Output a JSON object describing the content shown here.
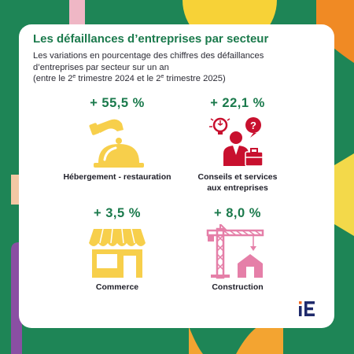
{
  "header": {
    "title": "Les défaillances d’entreprises par secteur",
    "subtitle_lines": [
      "Les variations en pourcentage des chiffres des défaillances",
      "d’entreprises par secteur sur un an"
    ],
    "period_parts": [
      "(entre le 2",
      "e",
      " trimestre 2024 et le 2",
      "e",
      " trimestre 2025)"
    ]
  },
  "sectors": [
    {
      "value": "+ 55,5 %",
      "label_lines": [
        "Hébergement - restauration"
      ],
      "icon": "cloche-serving-icon"
    },
    {
      "value": "+ 22,1 %",
      "label_lines": [
        "Conseils et services",
        "aux entreprises"
      ],
      "icon": "consultant-icon"
    },
    {
      "value": "+ 3,5 %",
      "label_lines": [
        "Commerce"
      ],
      "icon": "shop-icon"
    },
    {
      "value": "+ 8,0 %",
      "label_lines": [
        "Construction"
      ],
      "icon": "crane-house-icon"
    }
  ],
  "logo": {
    "text": "iE"
  },
  "colors": {
    "background": "#1e8556",
    "accent_green": "#1b7a4c",
    "icon_yellow": "#f7cf4b",
    "icon_red": "#c8102e",
    "icon_pink": "#e57fa8",
    "logo_blue": "#1f2a6b",
    "logo_orange": "#f26b21"
  }
}
